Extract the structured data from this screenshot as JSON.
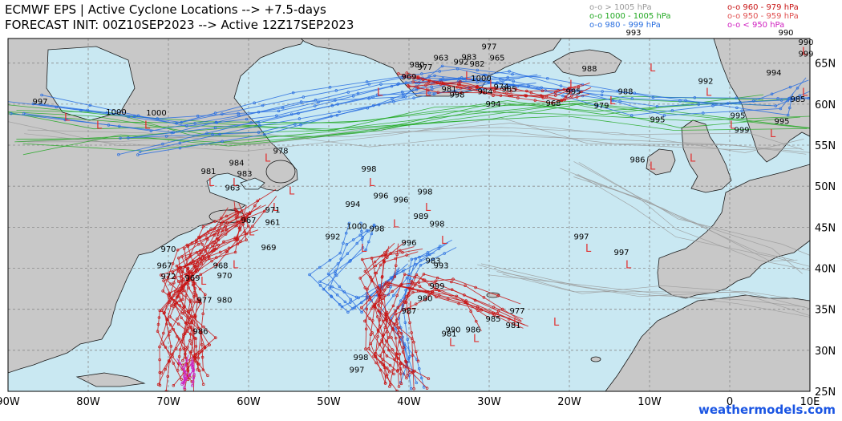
{
  "header": {
    "title_line1": "ECMWF EPS | Active Cyclone Locations --> +7.5-days",
    "title_line2": "FORECAST INIT: 00Z10SEP2023 --> Active 12Z17SEP2023"
  },
  "legend": {
    "left": [
      {
        "label": "o-o > 1005 hPa",
        "color": "#9a9a9a"
      },
      {
        "label": "o-o 1000 - 1005 hPa",
        "color": "#22a822"
      },
      {
        "label": "o-o 980 - 999 hPa",
        "color": "#2a6fe0"
      }
    ],
    "right": [
      {
        "label": "o-o 960 - 979 hPa",
        "color": "#c81414"
      },
      {
        "label": "o-o 950 - 959 hPa",
        "color": "#e05050"
      },
      {
        "label": "o-o < 950 hPa",
        "color": "#d020c0"
      }
    ]
  },
  "axes": {
    "lon_labels": [
      "90W",
      "80W",
      "70W",
      "60W",
      "50W",
      "40W",
      "30W",
      "20W",
      "10W",
      "0",
      "10E"
    ],
    "lat_labels": [
      "65N",
      "60N",
      "55N",
      "50N",
      "45N",
      "40N",
      "35N",
      "30N",
      "25N"
    ]
  },
  "colors": {
    "ocean": "#c9e8f2",
    "land": "#c8c8c8",
    "coast": "#1a1a1a",
    "grid": "#8a8a8a"
  },
  "pressure_labels": [
    {
      "text": "997",
      "lon": -86,
      "lat": 60
    },
    {
      "text": "1000",
      "lon": -76.5,
      "lat": 58.7
    },
    {
      "text": "1000",
      "lon": -71.5,
      "lat": 58.6
    },
    {
      "text": "978",
      "lon": -56,
      "lat": 54
    },
    {
      "text": "984",
      "lon": -61.5,
      "lat": 52.5
    },
    {
      "text": "981",
      "lon": -65,
      "lat": 51.5
    },
    {
      "text": "983",
      "lon": -60.5,
      "lat": 51.2
    },
    {
      "text": "963",
      "lon": -62,
      "lat": 49.5
    },
    {
      "text": "967",
      "lon": -60,
      "lat": 45.5
    },
    {
      "text": "971",
      "lon": -57,
      "lat": 46.8
    },
    {
      "text": "961",
      "lon": -57,
      "lat": 45.3
    },
    {
      "text": "969",
      "lon": -57.5,
      "lat": 42.2
    },
    {
      "text": "970",
      "lon": -70,
      "lat": 42
    },
    {
      "text": "967",
      "lon": -70.5,
      "lat": 40
    },
    {
      "text": "972",
      "lon": -70,
      "lat": 38.7
    },
    {
      "text": "969",
      "lon": -67,
      "lat": 38.5
    },
    {
      "text": "968",
      "lon": -63.5,
      "lat": 40
    },
    {
      "text": "970",
      "lon": -63,
      "lat": 38.8
    },
    {
      "text": "977",
      "lon": -65.5,
      "lat": 35.8
    },
    {
      "text": "980",
      "lon": -63,
      "lat": 35.8
    },
    {
      "text": "986",
      "lon": -66,
      "lat": 32
    },
    {
      "text": "998",
      "lon": -45,
      "lat": 51.8
    },
    {
      "text": "996",
      "lon": -43.5,
      "lat": 48.5
    },
    {
      "text": "996",
      "lon": -41,
      "lat": 48
    },
    {
      "text": "994",
      "lon": -47,
      "lat": 47.5
    },
    {
      "text": "998",
      "lon": -38,
      "lat": 49
    },
    {
      "text": "989",
      "lon": -38.5,
      "lat": 46
    },
    {
      "text": "998",
      "lon": -36.5,
      "lat": 45.1
    },
    {
      "text": "992",
      "lon": -49.5,
      "lat": 43.5
    },
    {
      "text": "1000",
      "lon": -46.5,
      "lat": 44.8
    },
    {
      "text": "998",
      "lon": -44,
      "lat": 44.5
    },
    {
      "text": "996",
      "lon": -40,
      "lat": 42.8
    },
    {
      "text": "983",
      "lon": -37,
      "lat": 40.6
    },
    {
      "text": "993",
      "lon": -36,
      "lat": 40
    },
    {
      "text": "999",
      "lon": -36.5,
      "lat": 37.5
    },
    {
      "text": "980",
      "lon": -38,
      "lat": 36
    },
    {
      "text": "987",
      "lon": -40,
      "lat": 34.5
    },
    {
      "text": "977",
      "lon": -26.5,
      "lat": 34.5
    },
    {
      "text": "981",
      "lon": -27,
      "lat": 32.7
    },
    {
      "text": "985",
      "lon": -29.5,
      "lat": 33.5
    },
    {
      "text": "990",
      "lon": -34.5,
      "lat": 32.2
    },
    {
      "text": "986",
      "lon": -32,
      "lat": 32.2
    },
    {
      "text": "981",
      "lon": -35,
      "lat": 31.7
    },
    {
      "text": "998",
      "lon": -46,
      "lat": 28.8
    },
    {
      "text": "997",
      "lon": -46.5,
      "lat": 27.3
    },
    {
      "text": "997",
      "lon": -18.5,
      "lat": 43.5
    },
    {
      "text": "997",
      "lon": -13.5,
      "lat": 41.6
    },
    {
      "text": "986",
      "lon": -11.5,
      "lat": 52.9
    },
    {
      "text": "995",
      "lon": -19.5,
      "lat": 61.2
    },
    {
      "text": "988",
      "lon": -13,
      "lat": 61.2
    },
    {
      "text": "979",
      "lon": -16,
      "lat": 59.5
    },
    {
      "text": "968",
      "lon": -22,
      "lat": 59.8
    },
    {
      "text": "995",
      "lon": -9,
      "lat": 57.8
    },
    {
      "text": "992",
      "lon": -3,
      "lat": 62.5
    },
    {
      "text": "995",
      "lon": 1,
      "lat": 58.3
    },
    {
      "text": "999",
      "lon": 1.5,
      "lat": 56.5
    },
    {
      "text": "995",
      "lon": 6.5,
      "lat": 57.6
    },
    {
      "text": "994",
      "lon": 5.5,
      "lat": 63.5
    },
    {
      "text": "985",
      "lon": 8.5,
      "lat": 60.3
    },
    {
      "text": "990",
      "lon": 7,
      "lat": 68.4
    },
    {
      "text": "990",
      "lon": 9.5,
      "lat": 67.2
    },
    {
      "text": "999",
      "lon": 9.5,
      "lat": 65.8
    },
    {
      "text": "988",
      "lon": -17.5,
      "lat": 64
    },
    {
      "text": "993",
      "lon": -12,
      "lat": 68.4
    },
    {
      "text": "977",
      "lon": -30,
      "lat": 66.7
    },
    {
      "text": "965",
      "lon": -29,
      "lat": 65.3
    },
    {
      "text": "992",
      "lon": -33.5,
      "lat": 64.8
    },
    {
      "text": "985",
      "lon": -27.5,
      "lat": 61.5
    },
    {
      "text": "994",
      "lon": -29.5,
      "lat": 59.7
    },
    {
      "text": "984",
      "lon": -30.5,
      "lat": 61.2
    },
    {
      "text": "983",
      "lon": -32.5,
      "lat": 65.4
    },
    {
      "text": "982",
      "lon": -31.5,
      "lat": 64.6
    },
    {
      "text": "981",
      "lon": -35,
      "lat": 61.5
    },
    {
      "text": "980",
      "lon": -39,
      "lat": 64.5
    },
    {
      "text": "977",
      "lon": -38,
      "lat": 64.2
    },
    {
      "text": "963",
      "lon": -36,
      "lat": 65.3
    },
    {
      "text": "969",
      "lon": -40,
      "lat": 63
    },
    {
      "text": "1000",
      "lon": -31,
      "lat": 62.8
    },
    {
      "text": "998",
      "lon": -34,
      "lat": 60.8
    },
    {
      "text": "974",
      "lon": -28.5,
      "lat": 61.8
    }
  ]
}
